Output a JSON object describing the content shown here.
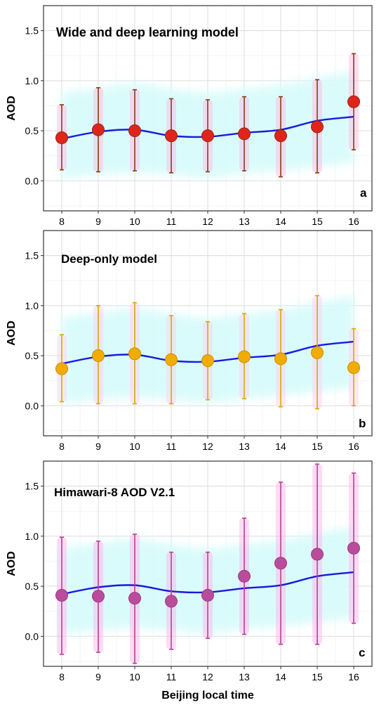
{
  "xlabel": "Beijing local time",
  "chart_data": [
    {
      "type": "line",
      "title": "Wide and deep learning model",
      "panel_letter": "a",
      "ylabel": "AOD",
      "ylim": [
        -0.3,
        1.75
      ],
      "yticks": [
        "0.0",
        "0.5",
        "1.0",
        "1.5"
      ],
      "ytick_values": [
        0,
        0.5,
        1.0,
        1.5
      ],
      "categories": [
        "8",
        "9",
        "10",
        "11",
        "12",
        "13",
        "14",
        "15",
        "16"
      ],
      "x": [
        8,
        9,
        10,
        11,
        12,
        13,
        14,
        15,
        16
      ],
      "reference_line": [
        0.42,
        0.49,
        0.51,
        0.45,
        0.44,
        0.48,
        0.51,
        0.6,
        0.64
      ],
      "reference_band": {
        "lower": [
          0.02,
          0.06,
          0.08,
          0.06,
          0.03,
          0.07,
          0.1,
          0.14,
          0.18
        ],
        "upper": [
          0.88,
          0.93,
          0.97,
          0.92,
          0.88,
          0.92,
          0.96,
          1.03,
          1.1
        ]
      },
      "points": [
        0.43,
        0.51,
        0.5,
        0.45,
        0.45,
        0.47,
        0.45,
        0.54,
        0.79
      ],
      "err_low": [
        0.11,
        0.09,
        0.1,
        0.08,
        0.09,
        0.1,
        0.04,
        0.08,
        0.31
      ],
      "err_high": [
        0.76,
        0.93,
        0.91,
        0.82,
        0.81,
        0.84,
        0.84,
        1.01,
        1.27
      ],
      "colors": {
        "point": "#e0241c",
        "point_stroke": "#8b2a14",
        "error_bar": "#8b3a14",
        "halo": "#ffb6e0",
        "line": "#1a1adf",
        "band": "#d9fbfb"
      },
      "grid": true
    },
    {
      "type": "line",
      "title": "Deep-only model",
      "panel_letter": "b",
      "ylabel": "AOD",
      "ylim": [
        -0.3,
        1.75
      ],
      "yticks": [
        "0.0",
        "0.5",
        "1.0",
        "1.5"
      ],
      "ytick_values": [
        0,
        0.5,
        1.0,
        1.5
      ],
      "categories": [
        "8",
        "9",
        "10",
        "11",
        "12",
        "13",
        "14",
        "15",
        "16"
      ],
      "x": [
        8,
        9,
        10,
        11,
        12,
        13,
        14,
        15,
        16
      ],
      "reference_line": [
        0.42,
        0.49,
        0.51,
        0.45,
        0.44,
        0.48,
        0.51,
        0.6,
        0.64
      ],
      "reference_band": {
        "lower": [
          0.02,
          0.06,
          0.08,
          0.06,
          0.03,
          0.07,
          0.1,
          0.14,
          0.18
        ],
        "upper": [
          0.88,
          0.93,
          0.97,
          0.92,
          0.88,
          0.92,
          0.96,
          1.03,
          1.1
        ]
      },
      "points": [
        0.37,
        0.5,
        0.52,
        0.46,
        0.45,
        0.49,
        0.47,
        0.53,
        0.38
      ],
      "err_low": [
        0.04,
        0.02,
        0.02,
        0.02,
        0.06,
        0.07,
        -0.01,
        -0.03,
        0.0
      ],
      "err_high": [
        0.71,
        1.0,
        1.03,
        0.9,
        0.84,
        0.92,
        0.96,
        1.1,
        0.77
      ],
      "colors": {
        "point": "#f0ad00",
        "point_stroke": "#c78f00",
        "error_bar": "#d8a800",
        "halo": "#ffccee",
        "line": "#1a1adf",
        "band": "#d9fbfb"
      },
      "grid": true
    },
    {
      "type": "line",
      "title": "Himawari-8 AOD V2.1",
      "panel_letter": "c",
      "ylabel": "AOD",
      "ylim": [
        -0.3,
        1.75
      ],
      "yticks": [
        "0.0",
        "0.5",
        "1.0",
        "1.5"
      ],
      "ytick_values": [
        0,
        0.5,
        1.0,
        1.5
      ],
      "categories": [
        "8",
        "9",
        "10",
        "11",
        "12",
        "13",
        "14",
        "15",
        "16"
      ],
      "x": [
        8,
        9,
        10,
        11,
        12,
        13,
        14,
        15,
        16
      ],
      "reference_line": [
        0.42,
        0.49,
        0.51,
        0.45,
        0.44,
        0.48,
        0.51,
        0.6,
        0.64
      ],
      "reference_band": {
        "lower": [
          0.02,
          0.06,
          0.08,
          0.06,
          0.03,
          0.07,
          0.1,
          0.14,
          0.18
        ],
        "upper": [
          0.88,
          0.93,
          0.97,
          0.92,
          0.88,
          0.92,
          0.96,
          1.03,
          1.1
        ]
      },
      "points": [
        0.41,
        0.4,
        0.38,
        0.35,
        0.41,
        0.6,
        0.73,
        0.82,
        0.88
      ],
      "err_low": [
        -0.18,
        -0.16,
        -0.27,
        -0.13,
        -0.02,
        0.02,
        -0.08,
        -0.08,
        0.13
      ],
      "err_high": [
        0.99,
        0.95,
        1.02,
        0.84,
        0.84,
        1.18,
        1.54,
        1.72,
        1.63
      ],
      "colors": {
        "point": "#bb4c9c",
        "point_stroke": "#9a3a80",
        "error_bar": "#b8408f",
        "halo": "#ffb0e8",
        "line": "#1a1adf",
        "band": "#d9fbfb"
      },
      "grid": true
    }
  ]
}
